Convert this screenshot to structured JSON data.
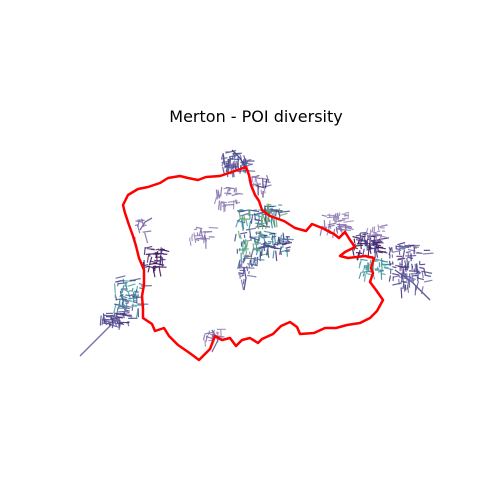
{
  "title": "Merton - POI diversity",
  "colors": {
    "boundary": "#ff0000",
    "street_palette": [
      "#3b0f4f",
      "#4a2a7a",
      "#3f4a8a",
      "#5a5a9a",
      "#7a6aa8",
      "#9a86b8",
      "#3b8a9a",
      "#4aa3a3",
      "#6aa86a"
    ]
  }
}
